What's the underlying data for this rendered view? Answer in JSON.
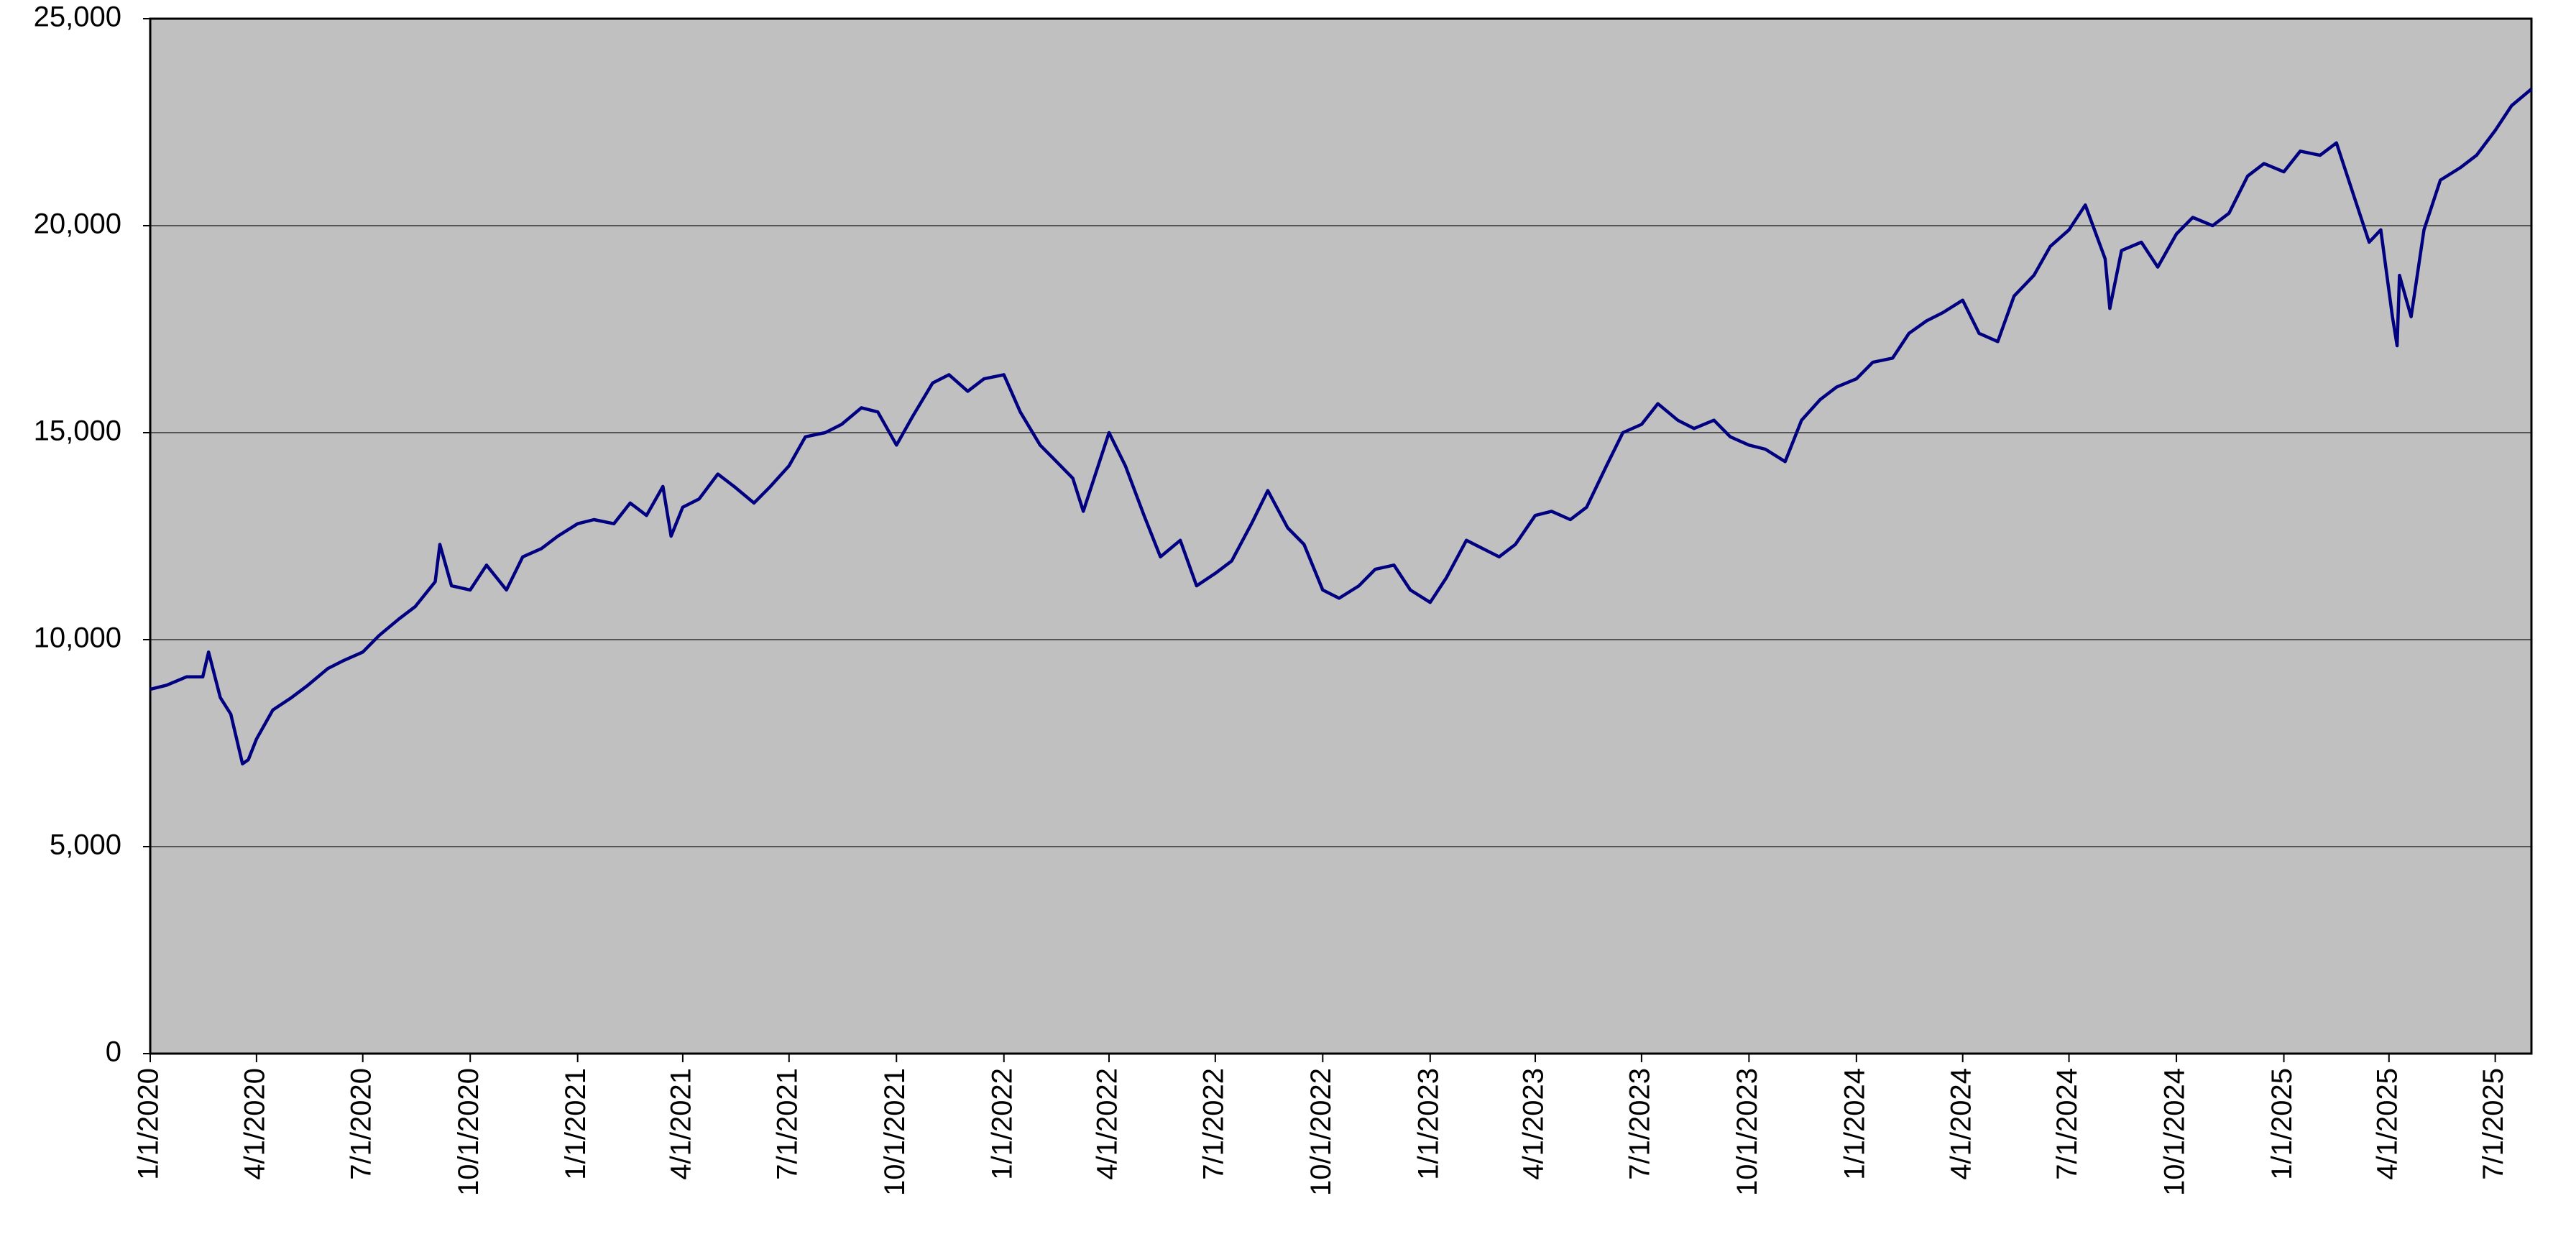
{
  "chart_data": {
    "type": "line",
    "x": [
      "2020-01-01",
      "2020-01-15",
      "2020-02-01",
      "2020-02-15",
      "2020-02-20",
      "2020-03-01",
      "2020-03-10",
      "2020-03-20",
      "2020-03-25",
      "2020-04-01",
      "2020-04-15",
      "2020-05-01",
      "2020-05-15",
      "2020-06-01",
      "2020-06-15",
      "2020-07-01",
      "2020-07-15",
      "2020-08-01",
      "2020-08-15",
      "2020-09-01",
      "2020-09-05",
      "2020-09-15",
      "2020-10-01",
      "2020-10-15",
      "2020-11-01",
      "2020-11-15",
      "2020-12-01",
      "2020-12-15",
      "2021-01-01",
      "2021-01-15",
      "2021-02-01",
      "2021-02-15",
      "2021-03-01",
      "2021-03-15",
      "2021-03-22",
      "2021-04-01",
      "2021-04-15",
      "2021-05-01",
      "2021-05-15",
      "2021-06-01",
      "2021-06-15",
      "2021-07-01",
      "2021-07-15",
      "2021-08-01",
      "2021-08-15",
      "2021-09-01",
      "2021-09-15",
      "2021-10-01",
      "2021-10-15",
      "2021-11-01",
      "2021-11-15",
      "2021-12-01",
      "2021-12-15",
      "2022-01-01",
      "2022-01-15",
      "2022-02-01",
      "2022-02-15",
      "2022-03-01",
      "2022-03-10",
      "2022-04-01",
      "2022-04-15",
      "2022-05-01",
      "2022-05-15",
      "2022-06-01",
      "2022-06-15",
      "2022-07-01",
      "2022-07-15",
      "2022-08-01",
      "2022-08-15",
      "2022-09-01",
      "2022-09-15",
      "2022-10-01",
      "2022-10-15",
      "2022-11-01",
      "2022-11-15",
      "2022-12-01",
      "2022-12-15",
      "2023-01-01",
      "2023-01-15",
      "2023-02-01",
      "2023-02-15",
      "2023-03-01",
      "2023-03-15",
      "2023-04-01",
      "2023-04-15",
      "2023-05-01",
      "2023-05-15",
      "2023-06-01",
      "2023-06-15",
      "2023-07-01",
      "2023-07-15",
      "2023-08-01",
      "2023-08-15",
      "2023-09-01",
      "2023-09-15",
      "2023-10-01",
      "2023-10-15",
      "2023-11-01",
      "2023-11-15",
      "2023-12-01",
      "2023-12-15",
      "2024-01-01",
      "2024-01-15",
      "2024-02-01",
      "2024-02-15",
      "2024-03-01",
      "2024-03-15",
      "2024-04-01",
      "2024-04-15",
      "2024-05-01",
      "2024-05-15",
      "2024-06-01",
      "2024-06-15",
      "2024-07-01",
      "2024-07-15",
      "2024-08-01",
      "2024-08-05",
      "2024-08-15",
      "2024-09-01",
      "2024-09-15",
      "2024-10-01",
      "2024-10-15",
      "2024-11-01",
      "2024-11-15",
      "2024-12-01",
      "2024-12-15",
      "2025-01-01",
      "2025-01-15",
      "2025-02-01",
      "2025-02-15",
      "2025-03-01",
      "2025-03-15",
      "2025-03-25",
      "2025-04-04",
      "2025-04-08",
      "2025-04-10",
      "2025-04-20",
      "2025-05-01",
      "2025-05-15",
      "2025-06-01",
      "2025-06-15",
      "2025-07-01",
      "2025-07-15",
      "2025-08-01"
    ],
    "series": [
      {
        "color": "#000080",
        "values": [
          8800,
          8900,
          9100,
          9100,
          9700,
          8600,
          8200,
          7000,
          7100,
          7600,
          8300,
          8600,
          8900,
          9300,
          9500,
          9700,
          10100,
          10500,
          10800,
          11400,
          12300,
          11300,
          11200,
          11800,
          11200,
          12000,
          12200,
          12500,
          12800,
          12900,
          12800,
          13300,
          13000,
          13700,
          12500,
          13200,
          13400,
          14000,
          13700,
          13300,
          13700,
          14200,
          14900,
          15000,
          15200,
          15600,
          15500,
          14700,
          15400,
          16200,
          16400,
          16000,
          16300,
          16400,
          15500,
          14700,
          14300,
          13900,
          13100,
          15000,
          14200,
          13000,
          12000,
          12400,
          11300,
          11600,
          11900,
          12800,
          13600,
          12700,
          12300,
          11200,
          11000,
          11300,
          11700,
          11800,
          11200,
          10900,
          11500,
          12400,
          12200,
          12000,
          12300,
          13000,
          13100,
          12900,
          13200,
          14200,
          15000,
          15200,
          15700,
          15300,
          15100,
          15300,
          14900,
          14700,
          14600,
          14300,
          15300,
          15800,
          16100,
          16300,
          16700,
          16800,
          17400,
          17700,
          17900,
          18200,
          17400,
          17200,
          18300,
          18800,
          19500,
          19900,
          20500,
          19200,
          18000,
          19400,
          19600,
          19000,
          19800,
          20200,
          20000,
          20300,
          21200,
          21500,
          21300,
          21800,
          21700,
          22000,
          20800,
          19600,
          19900,
          17800,
          17100,
          18800,
          17800,
          19900,
          21100,
          21400,
          21700,
          22300,
          22900,
          23300
        ]
      }
    ],
    "xlim": [
      "2020-01-01",
      "2025-08-01"
    ],
    "xticks": [
      {
        "value": "2020-01-01",
        "label": "1/1/2020"
      },
      {
        "value": "2020-04-01",
        "label": "4/1/2020"
      },
      {
        "value": "2020-07-01",
        "label": "7/1/2020"
      },
      {
        "value": "2020-10-01",
        "label": "10/1/2020"
      },
      {
        "value": "2021-01-01",
        "label": "1/1/2021"
      },
      {
        "value": "2021-04-01",
        "label": "4/1/2021"
      },
      {
        "value": "2021-07-01",
        "label": "7/1/2021"
      },
      {
        "value": "2021-10-01",
        "label": "10/1/2021"
      },
      {
        "value": "2022-01-01",
        "label": "1/1/2022"
      },
      {
        "value": "2022-04-01",
        "label": "4/1/2022"
      },
      {
        "value": "2022-07-01",
        "label": "7/1/2022"
      },
      {
        "value": "2022-10-01",
        "label": "10/1/2022"
      },
      {
        "value": "2023-01-01",
        "label": "1/1/2023"
      },
      {
        "value": "2023-04-01",
        "label": "4/1/2023"
      },
      {
        "value": "2023-07-01",
        "label": "7/1/2023"
      },
      {
        "value": "2023-10-01",
        "label": "10/1/2023"
      },
      {
        "value": "2024-01-01",
        "label": "1/1/2024"
      },
      {
        "value": "2024-04-01",
        "label": "4/1/2024"
      },
      {
        "value": "2024-07-01",
        "label": "7/1/2024"
      },
      {
        "value": "2024-10-01",
        "label": "10/1/2024"
      },
      {
        "value": "2025-01-01",
        "label": "1/1/2025"
      },
      {
        "value": "2025-04-01",
        "label": "4/1/2025"
      },
      {
        "value": "2025-07-01",
        "label": "7/1/2025"
      }
    ],
    "ylim": [
      0,
      25000
    ],
    "yticks": [
      0,
      {
        "value": 5000,
        "label": "5,000"
      },
      {
        "value": 10000,
        "label": "10,000"
      },
      {
        "value": 15000,
        "label": "15,000"
      },
      {
        "value": 20000,
        "label": "20,000"
      },
      {
        "value": 25000,
        "label": "25,000"
      }
    ],
    "grid": true,
    "plot_background": "#c0c0c0"
  }
}
